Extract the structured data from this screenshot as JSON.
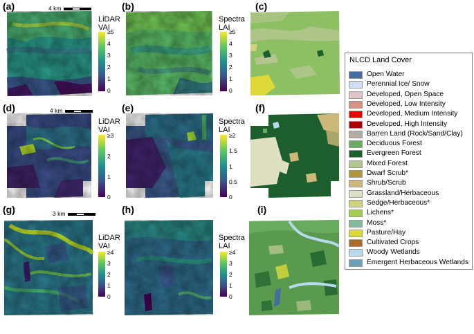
{
  "panels": {
    "a": {
      "label": "(a)",
      "colorbar_title": [
        "LiDAR",
        "VAI"
      ],
      "ticks": [
        "≥5",
        "4",
        "3",
        "2",
        "1",
        "0"
      ],
      "scale_label": "4 km"
    },
    "b": {
      "label": "(b)",
      "colorbar_title": [
        "Spectra",
        "LAI"
      ],
      "ticks": [
        "≥5",
        "4",
        "3",
        "2",
        "1",
        "0"
      ]
    },
    "c": {
      "label": "(c)"
    },
    "d": {
      "label": "(d)",
      "colorbar_title": [
        "LiDAR",
        "VAI"
      ],
      "ticks": [
        "≥3",
        "2",
        "1",
        "0"
      ],
      "scale_label": "4 km"
    },
    "e": {
      "label": "(e)",
      "colorbar_title": [
        "Spectra",
        "LAI"
      ],
      "ticks": [
        "≥2",
        "1.5",
        "1",
        "0.5",
        "0"
      ]
    },
    "f": {
      "label": "(f)"
    },
    "g": {
      "label": "(g)",
      "colorbar_title": [
        "LiDAR",
        "VAI"
      ],
      "ticks": [
        "≥4",
        "3",
        "2",
        "1",
        "0"
      ],
      "scale_label": "3 km"
    },
    "h": {
      "label": "(h)",
      "colorbar_title": [
        "Spectra",
        "LAI"
      ],
      "ticks": [
        "≥4",
        "3",
        "2",
        "1",
        "0"
      ]
    },
    "i": {
      "label": "(i)"
    }
  },
  "colormap": [
    "#440154",
    "#3b528b",
    "#21908d",
    "#5dc962",
    "#fde725"
  ],
  "legend": {
    "title": "NLCD Land Cover",
    "items": [
      {
        "label": "Open Water",
        "color": "#466b9f"
      },
      {
        "label": "Perennial Ice/ Snow",
        "color": "#d1def8"
      },
      {
        "label": "Developed, Open Space",
        "color": "#dec5c5"
      },
      {
        "label": "Developed, Low Intensity",
        "color": "#d99282"
      },
      {
        "label": "Developed, Medium Intensity",
        "color": "#eb0000"
      },
      {
        "label": "Developed, High Intensity",
        "color": "#ab0000"
      },
      {
        "label": "Barren Land (Rock/Sand/Clay)",
        "color": "#b3ac9f"
      },
      {
        "label": "Deciduous Forest",
        "color": "#68ab5f"
      },
      {
        "label": "Evergreen Forest",
        "color": "#1c5f2c"
      },
      {
        "label": "Mixed Forest",
        "color": "#b5c58f"
      },
      {
        "label": "Dwarf Scrub*",
        "color": "#af963c"
      },
      {
        "label": "Shrub/Scrub",
        "color": "#ccb879"
      },
      {
        "label": "Grassland/Herbaceous",
        "color": "#dfdfc2"
      },
      {
        "label": "Sedge/Herbaceous*",
        "color": "#d1d182"
      },
      {
        "label": "Lichens*",
        "color": "#a3cc51"
      },
      {
        "label": "Moss*",
        "color": "#82ba9e"
      },
      {
        "label": "Pasture/Hay",
        "color": "#dcd939"
      },
      {
        "label": "Cultivated Crops",
        "color": "#ab6c28"
      },
      {
        "label": "Woody Wetlands",
        "color": "#b8d9eb"
      },
      {
        "label": "Emergent Herbaceous Wetlands",
        "color": "#6c9fb8"
      }
    ]
  }
}
